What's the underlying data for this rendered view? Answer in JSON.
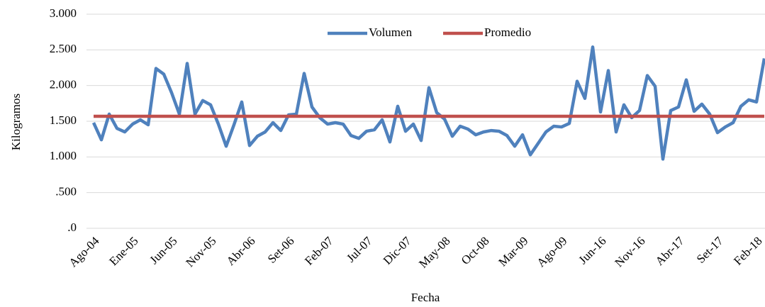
{
  "chart_data": {
    "type": "line",
    "x_label": "Fecha",
    "y_label": "Kilogramos",
    "categories": [
      "Ago-04",
      null,
      null,
      null,
      null,
      "Ene-05",
      null,
      null,
      null,
      null,
      "Jun-05",
      null,
      null,
      null,
      null,
      "Nov-05",
      null,
      null,
      null,
      null,
      "Abr-06",
      null,
      null,
      null,
      null,
      "Set-06",
      null,
      null,
      null,
      null,
      "Feb-07",
      null,
      null,
      null,
      null,
      "Jul-07",
      null,
      null,
      null,
      null,
      "Dic-07",
      null,
      null,
      null,
      null,
      "May-08",
      null,
      null,
      null,
      null,
      "Oct-08",
      null,
      null,
      null,
      null,
      "Mar-09",
      null,
      null,
      null,
      null,
      "Ago-09",
      null,
      null,
      null,
      null,
      "Jun-16",
      null,
      null,
      null,
      null,
      "Nov-16",
      null,
      null,
      null,
      null,
      "Abr-17",
      null,
      null,
      null,
      null,
      "Set-17",
      null,
      null,
      null,
      null,
      "Feb-18",
      null
    ],
    "series": [
      {
        "name": "Volumen",
        "color": "#4f81bd",
        "values": [
          1480,
          1240,
          1600,
          1400,
          1350,
          1460,
          1520,
          1450,
          2240,
          2160,
          1900,
          1600,
          2310,
          1600,
          1790,
          1730,
          1460,
          1150,
          1450,
          1770,
          1160,
          1290,
          1350,
          1480,
          1370,
          1590,
          1600,
          2170,
          1700,
          1550,
          1460,
          1480,
          1460,
          1300,
          1260,
          1360,
          1380,
          1520,
          1210,
          1710,
          1360,
          1460,
          1230,
          1970,
          1620,
          1530,
          1290,
          1430,
          1390,
          1310,
          1350,
          1370,
          1360,
          1300,
          1150,
          1310,
          1030,
          1190,
          1350,
          1430,
          1420,
          1470,
          2060,
          1820,
          2540,
          1630,
          2210,
          1350,
          1730,
          1550,
          1650,
          2140,
          1990,
          970,
          1650,
          1700,
          2080,
          1640,
          1740,
          1600,
          1340,
          1420,
          1480,
          1710,
          1800,
          1770,
          2380
        ]
      },
      {
        "name": "Promedio",
        "color": "#c0504d",
        "values": [
          1570,
          1570,
          1570,
          1570,
          1570,
          1570,
          1570,
          1570,
          1570,
          1570,
          1570,
          1570,
          1570,
          1570,
          1570,
          1570,
          1570,
          1570,
          1570,
          1570,
          1570,
          1570,
          1570,
          1570,
          1570,
          1570,
          1570,
          1570,
          1570,
          1570,
          1570,
          1570,
          1570,
          1570,
          1570,
          1570,
          1570,
          1570,
          1570,
          1570,
          1570,
          1570,
          1570,
          1570,
          1570,
          1570,
          1570,
          1570,
          1570,
          1570,
          1570,
          1570,
          1570,
          1570,
          1570,
          1570,
          1570,
          1570,
          1570,
          1570,
          1570,
          1570,
          1570,
          1570,
          1570,
          1570,
          1570,
          1570,
          1570,
          1570,
          1570,
          1570,
          1570,
          1570,
          1570,
          1570,
          1570,
          1570,
          1570,
          1570,
          1570,
          1570,
          1570,
          1570,
          1570,
          1570,
          1570
        ]
      }
    ],
    "ylim": [
      0,
      3000
    ],
    "yticks": [
      {
        "value": 0,
        "label": ".0"
      },
      {
        "value": 500,
        "label": ".500"
      },
      {
        "value": 1000,
        "label": "1.000"
      },
      {
        "value": 1500,
        "label": "1.500"
      },
      {
        "value": 2000,
        "label": "2.000"
      },
      {
        "value": 2500,
        "label": "2.500"
      },
      {
        "value": 3000,
        "label": "3.000"
      }
    ],
    "grid": true
  }
}
